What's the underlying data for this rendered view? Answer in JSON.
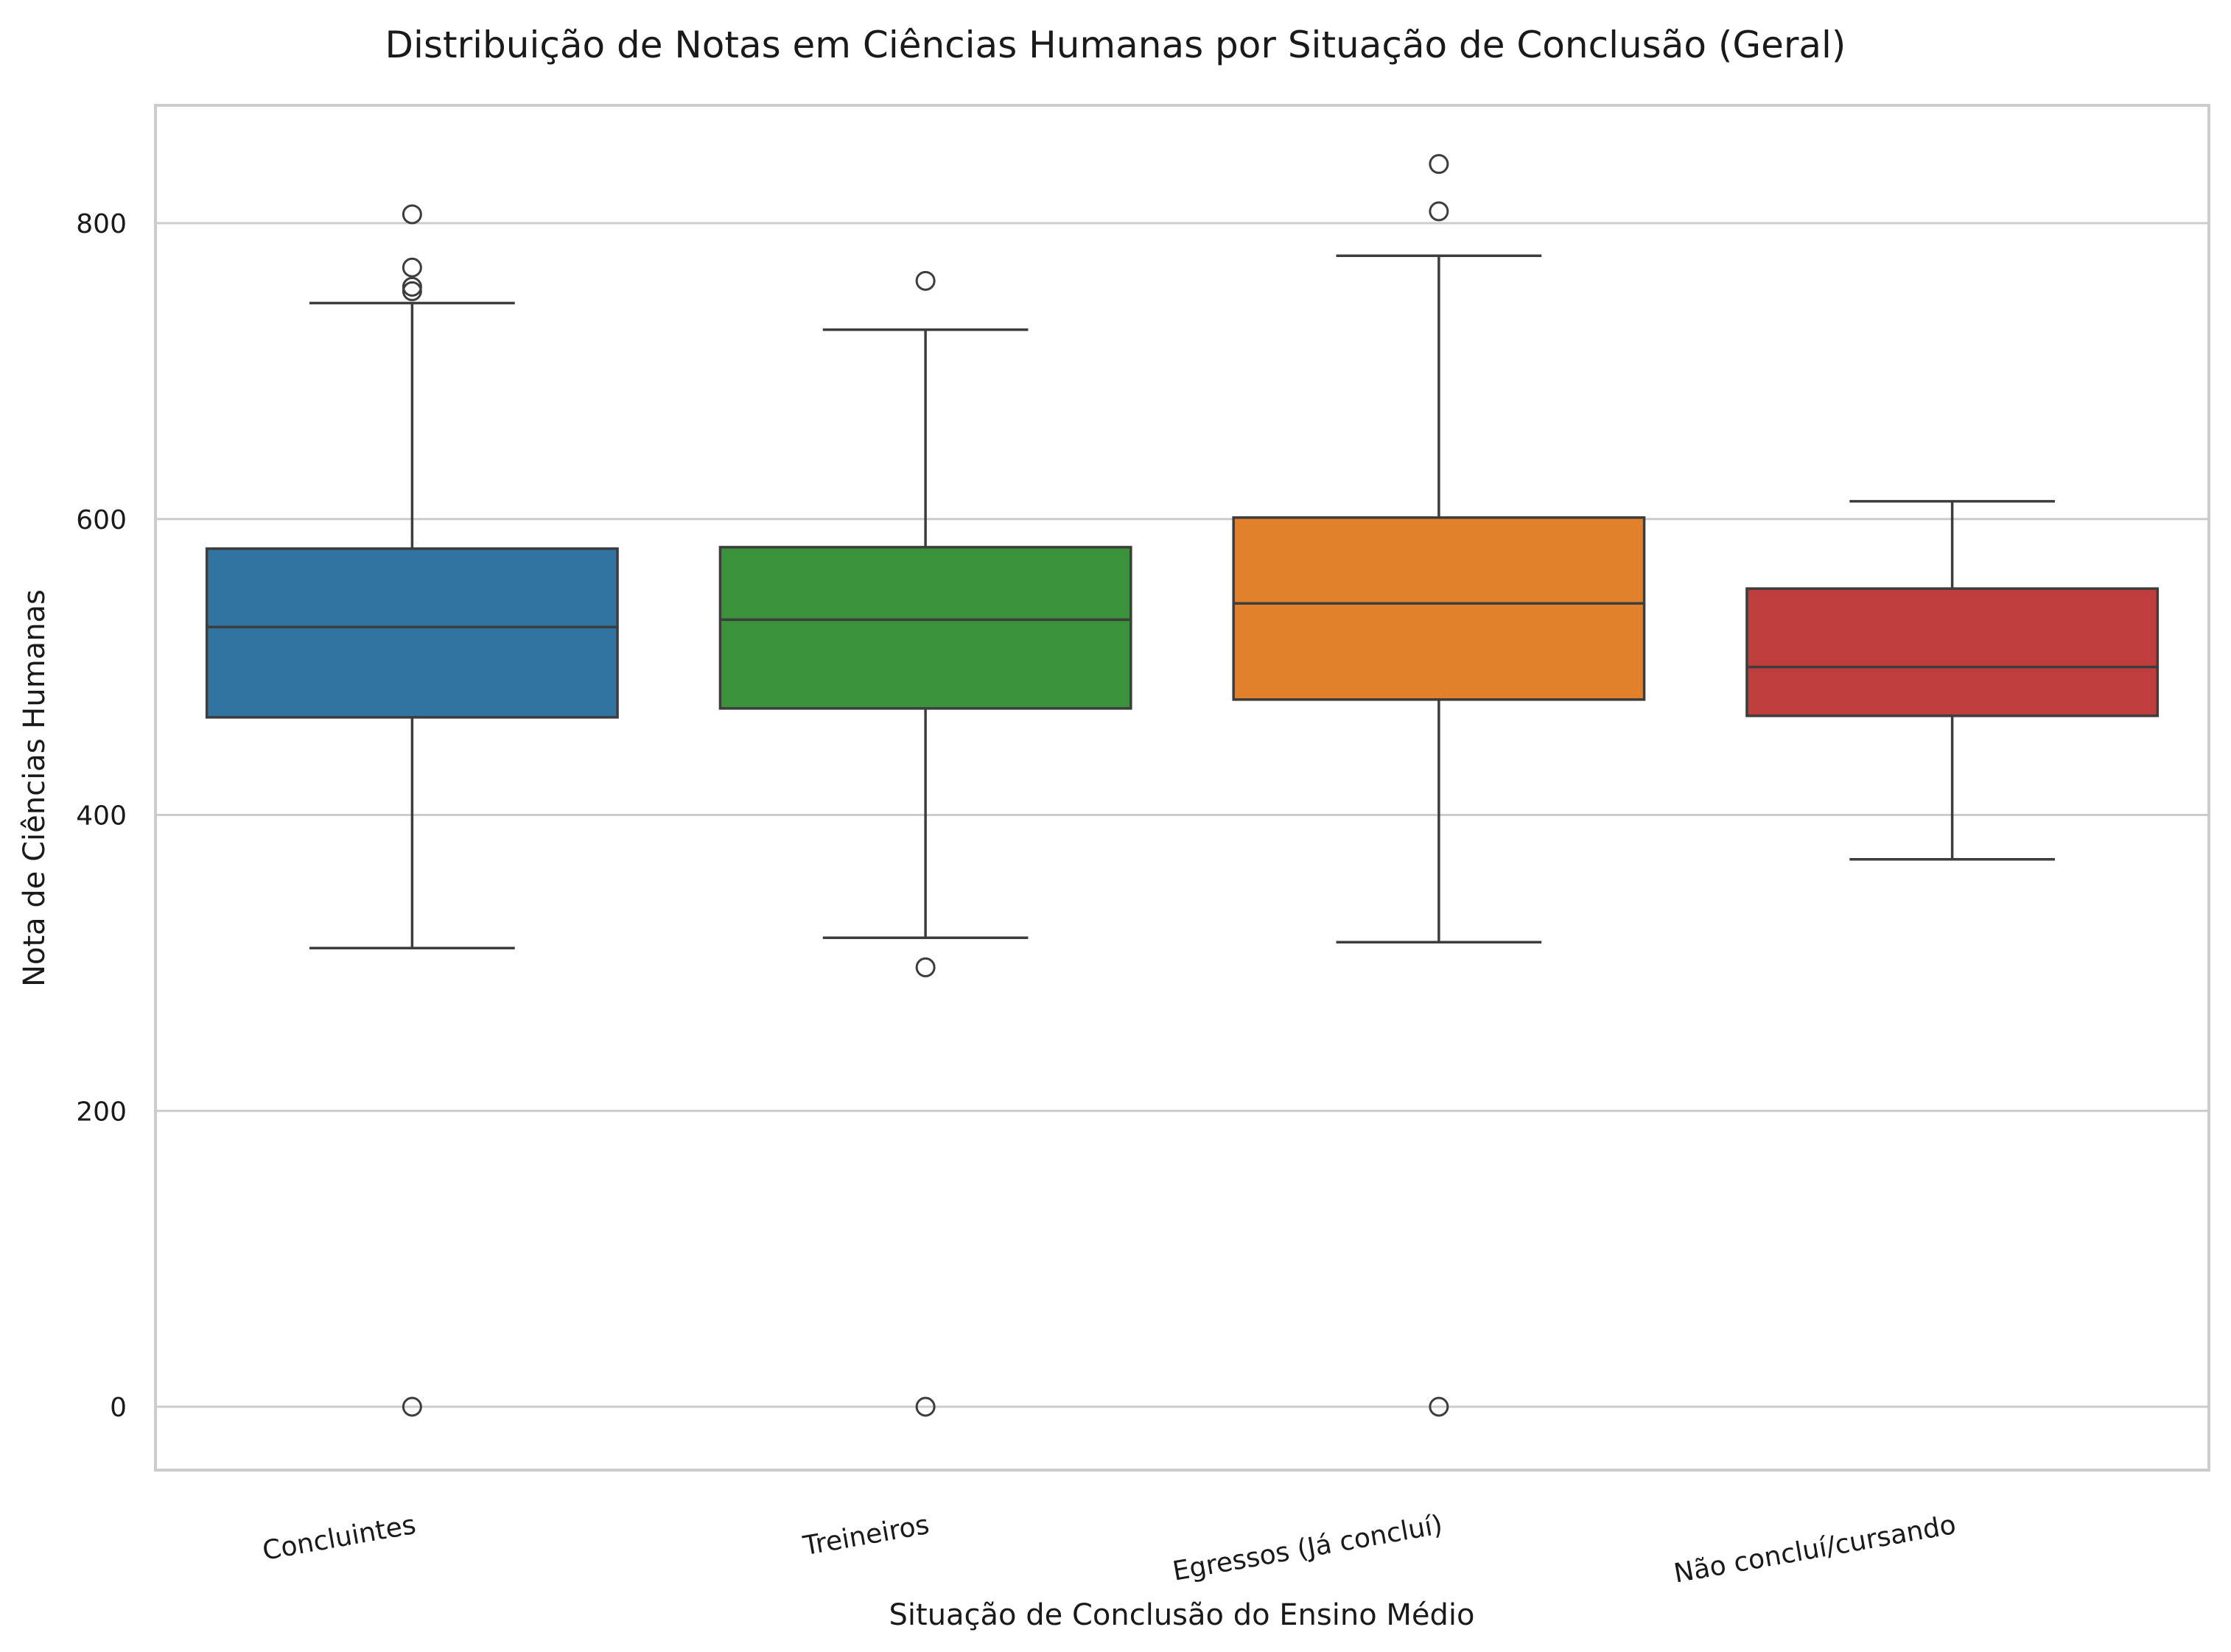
{
  "chart_data": {
    "type": "box",
    "title": "Distribuição de Notas em Ciências Humanas por Situação de Conclusão (Geral)",
    "xlabel": "Situação de Conclusão do Ensino Médio",
    "ylabel": "Nota de Ciências Humanas",
    "ylim": [
      -40,
      880
    ],
    "yticks": [
      0,
      200,
      400,
      600,
      800
    ],
    "grid": true,
    "categories": [
      "Concluintes",
      "Treineiros",
      "Egressos (Já concluí)",
      "Não concluí/cursando"
    ],
    "boxes": [
      {
        "category": "Concluintes",
        "color": "#3274a1",
        "whisker_low": 310,
        "q1": 466,
        "median": 527,
        "q3": 580,
        "whisker_high": 746,
        "outliers": [
          806,
          770,
          757,
          754,
          0
        ]
      },
      {
        "category": "Treineiros",
        "color": "#3a923a",
        "whisker_low": 317,
        "q1": 472,
        "median": 532,
        "q3": 581,
        "whisker_high": 728,
        "outliers": [
          761,
          297,
          0
        ]
      },
      {
        "category": "Egressos (Já concluí)",
        "color": "#e1812c",
        "whisker_low": 314,
        "q1": 478,
        "median": 543,
        "q3": 601,
        "whisker_high": 778,
        "outliers": [
          840,
          808,
          0
        ]
      },
      {
        "category": "Não concluí/cursando",
        "color": "#c03d3e",
        "whisker_low": 370,
        "q1": 467,
        "median": 500,
        "q3": 553,
        "whisker_high": 612,
        "outliers": []
      }
    ]
  }
}
